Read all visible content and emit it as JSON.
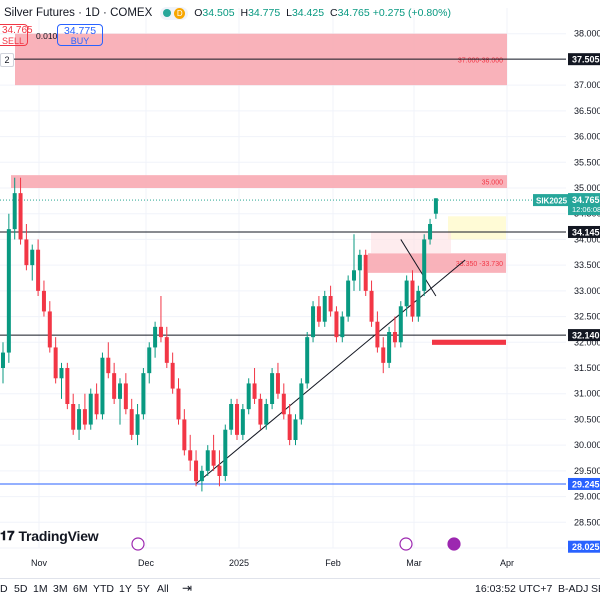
{
  "header": {
    "title": "Silver Futures · 1D · COMEX",
    "delay_badge": "D",
    "ohlc": {
      "o_label": "O",
      "o": "34.505",
      "h_label": "H",
      "h": "34.775",
      "l_label": "L",
      "l": "34.425",
      "c_label": "C",
      "c": "34.765"
    },
    "change": "+0.275 (+0.80%)"
  },
  "trade": {
    "sell_price": "34.765",
    "sell_label": "SELL",
    "spread": "0.010",
    "buy_price": "34.775",
    "buy_label": "BUY",
    "collapse_label": "2"
  },
  "logo_text": "TradingView",
  "colors": {
    "up": "#089981",
    "down": "#f23645",
    "zone": "#f8a5ae",
    "accent": "#2962ff"
  },
  "chart_data": {
    "type": "candlestick",
    "ylim": [
      28.0,
      38.5
    ],
    "y_ticks": [
      "28.000",
      "28.500",
      "29.000",
      "29.500",
      "30.000",
      "30.500",
      "31.000",
      "31.500",
      "32.000",
      "32.500",
      "33.000",
      "33.500",
      "34.000",
      "34.500",
      "35.000",
      "35.500",
      "36.000",
      "36.500",
      "37.000",
      "37.500",
      "38.000"
    ],
    "x_ticks": [
      "Nov",
      "Dec",
      "2025",
      "Feb",
      "Mar",
      "Apr"
    ],
    "price_labels": [
      {
        "text": "37.505",
        "value": 37.505,
        "style": "black"
      },
      {
        "text": "34.145",
        "value": 34.145,
        "style": "black"
      },
      {
        "text": "32.140",
        "value": 32.14,
        "style": "black"
      },
      {
        "text": "29.245",
        "value": 29.245,
        "style": "blue"
      },
      {
        "text": "28.025",
        "value": 28.025,
        "style": "blue"
      }
    ],
    "last_price": {
      "symbol": "SIK2025",
      "price": "34.765",
      "countdown": "12:06:08",
      "value": 34.765
    },
    "horizontal_lines": [
      37.505,
      34.145,
      32.14,
      29.245
    ],
    "zones": [
      {
        "label": "37.000-38.000",
        "low": 37.0,
        "high": 38.0
      },
      {
        "label": "35.000",
        "low": 35.0,
        "high": 35.25
      },
      {
        "label": "33.350 -33.730",
        "low": 33.35,
        "high": 33.73
      },
      {
        "label": "",
        "low": 31.95,
        "high": 32.05
      }
    ],
    "candles": [
      [
        31.5,
        32.0,
        31.2,
        31.8
      ],
      [
        31.8,
        34.5,
        31.6,
        34.2
      ],
      [
        34.2,
        35.2,
        34.0,
        34.9
      ],
      [
        34.9,
        35.2,
        33.9,
        34.0
      ],
      [
        34.0,
        34.3,
        33.4,
        33.5
      ],
      [
        33.5,
        33.9,
        33.2,
        33.8
      ],
      [
        33.8,
        34.0,
        32.9,
        33.0
      ],
      [
        33.0,
        33.2,
        32.5,
        32.6
      ],
      [
        32.6,
        32.8,
        31.8,
        31.9
      ],
      [
        31.9,
        32.1,
        31.2,
        31.3
      ],
      [
        31.3,
        31.6,
        30.9,
        31.5
      ],
      [
        31.5,
        31.6,
        30.7,
        30.8
      ],
      [
        30.8,
        31.0,
        30.2,
        30.3
      ],
      [
        30.3,
        30.8,
        30.1,
        30.7
      ],
      [
        30.7,
        31.0,
        30.3,
        30.4
      ],
      [
        30.4,
        31.1,
        30.3,
        31.0
      ],
      [
        31.0,
        31.2,
        30.5,
        30.6
      ],
      [
        30.6,
        31.8,
        30.5,
        31.7
      ],
      [
        31.7,
        32.0,
        31.3,
        31.4
      ],
      [
        31.4,
        31.6,
        30.8,
        30.9
      ],
      [
        30.9,
        31.3,
        30.4,
        31.2
      ],
      [
        31.2,
        31.4,
        30.6,
        30.7
      ],
      [
        30.7,
        30.9,
        30.1,
        30.2
      ],
      [
        30.2,
        30.8,
        30.0,
        30.6
      ],
      [
        30.6,
        31.5,
        30.5,
        31.4
      ],
      [
        31.4,
        32.0,
        31.2,
        31.9
      ],
      [
        31.9,
        32.4,
        31.7,
        32.3
      ],
      [
        32.3,
        32.9,
        32.0,
        32.1
      ],
      [
        32.1,
        32.3,
        31.5,
        31.6
      ],
      [
        31.6,
        31.8,
        31.0,
        31.1
      ],
      [
        31.1,
        31.3,
        30.4,
        30.5
      ],
      [
        30.5,
        30.7,
        29.8,
        29.9
      ],
      [
        29.9,
        30.2,
        29.5,
        29.7
      ],
      [
        29.7,
        29.9,
        29.2,
        29.3
      ],
      [
        29.3,
        29.6,
        29.1,
        29.5
      ],
      [
        29.5,
        30.0,
        29.4,
        29.9
      ],
      [
        29.9,
        30.2,
        29.5,
        29.6
      ],
      [
        29.6,
        29.9,
        29.2,
        29.4
      ],
      [
        29.4,
        30.4,
        29.3,
        30.3
      ],
      [
        30.3,
        30.9,
        30.2,
        30.8
      ],
      [
        30.8,
        30.9,
        30.1,
        30.2
      ],
      [
        30.2,
        30.8,
        30.1,
        30.7
      ],
      [
        30.7,
        31.3,
        30.6,
        31.2
      ],
      [
        31.2,
        31.5,
        30.8,
        30.9
      ],
      [
        30.9,
        31.0,
        30.3,
        30.4
      ],
      [
        30.4,
        30.9,
        30.3,
        30.8
      ],
      [
        30.8,
        31.5,
        30.7,
        31.4
      ],
      [
        31.4,
        31.6,
        30.9,
        31.0
      ],
      [
        31.0,
        31.2,
        30.5,
        30.6
      ],
      [
        30.6,
        30.8,
        30.0,
        30.1
      ],
      [
        30.1,
        30.6,
        30.0,
        30.5
      ],
      [
        30.5,
        31.3,
        30.4,
        31.2
      ],
      [
        31.2,
        32.2,
        31.1,
        32.1
      ],
      [
        32.1,
        32.8,
        32.0,
        32.7
      ],
      [
        32.7,
        32.9,
        32.3,
        32.4
      ],
      [
        32.4,
        33.0,
        32.3,
        32.9
      ],
      [
        32.9,
        33.1,
        32.5,
        32.6
      ],
      [
        32.6,
        32.7,
        32.0,
        32.1
      ],
      [
        32.1,
        32.6,
        32.0,
        32.5
      ],
      [
        32.5,
        33.3,
        32.4,
        33.2
      ],
      [
        33.2,
        34.1,
        33.0,
        33.4
      ],
      [
        33.4,
        33.8,
        33.0,
        33.7
      ],
      [
        33.7,
        33.8,
        32.9,
        33.0
      ],
      [
        33.0,
        33.2,
        32.3,
        32.4
      ],
      [
        32.4,
        32.6,
        31.8,
        31.9
      ],
      [
        31.9,
        32.1,
        31.4,
        31.6
      ],
      [
        31.6,
        32.3,
        31.5,
        32.2
      ],
      [
        32.2,
        32.5,
        31.9,
        32.0
      ],
      [
        32.0,
        32.8,
        31.9,
        32.7
      ],
      [
        32.7,
        33.3,
        32.5,
        33.2
      ],
      [
        33.2,
        33.4,
        32.4,
        32.5
      ],
      [
        32.5,
        33.1,
        32.4,
        33.0
      ],
      [
        33.0,
        34.1,
        32.9,
        34.0
      ],
      [
        34.0,
        34.4,
        33.9,
        34.3
      ],
      [
        34.5,
        34.8,
        34.4,
        34.8
      ]
    ],
    "trendlines": [
      {
        "name": "support",
        "from": [
          33,
          29.25
        ],
        "to": [
          79,
          33.6
        ]
      },
      {
        "name": "resistance",
        "from": [
          68,
          34.0
        ],
        "to": [
          74,
          32.9
        ]
      }
    ]
  },
  "bottom_bar": {
    "ranges": [
      "D",
      "5D",
      "1M",
      "3M",
      "6M",
      "YTD",
      "1Y",
      "5Y",
      "All"
    ],
    "clock": "16:03:52 UTC+7",
    "adj": "B-ADJ",
    "se": "SE"
  }
}
